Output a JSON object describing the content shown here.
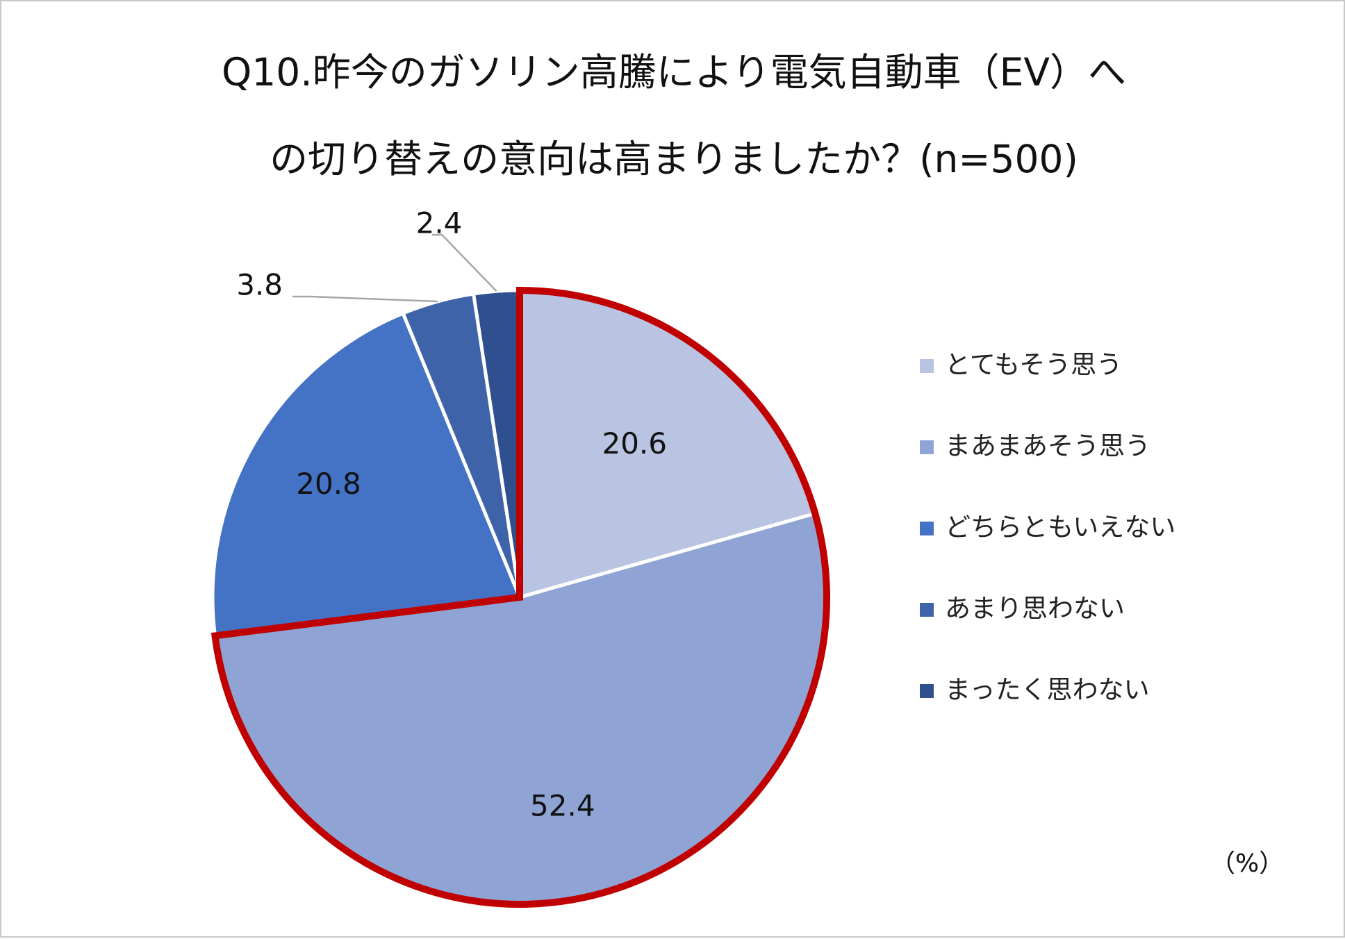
{
  "title": {
    "line1": "Q10.昨今のガソリン高騰により電気自動車（EV）へ",
    "line2": "の切り替えの意向は高まりましたか？(n=500)"
  },
  "unit_label": "（%）",
  "chart_data": {
    "type": "pie",
    "title": "Q10.昨今のガソリン高騰により電気自動車（EV）への切り替えの意向は高まりましたか？(n=500)",
    "unit": "%",
    "start": "12 o'clock, clockwise",
    "legend_position": "right",
    "categories": [
      "とてもそう思う",
      "まあまあそう思う",
      "どちらともいえない",
      "あまり思わない",
      "まったく思わない"
    ],
    "values": [
      20.6,
      52.4,
      20.8,
      3.8,
      2.4
    ],
    "labels": [
      "20.6",
      "52.4",
      "20.8",
      "3.8",
      "2.4"
    ],
    "colors": [
      "#b9c3e2",
      "#8fa4d4",
      "#4473c5",
      "#3f63a9",
      "#2f4f8f"
    ],
    "highlight": {
      "slices": [
        "とてもそう思う",
        "まあまあそう思う"
      ],
      "color": "#c00000"
    }
  }
}
